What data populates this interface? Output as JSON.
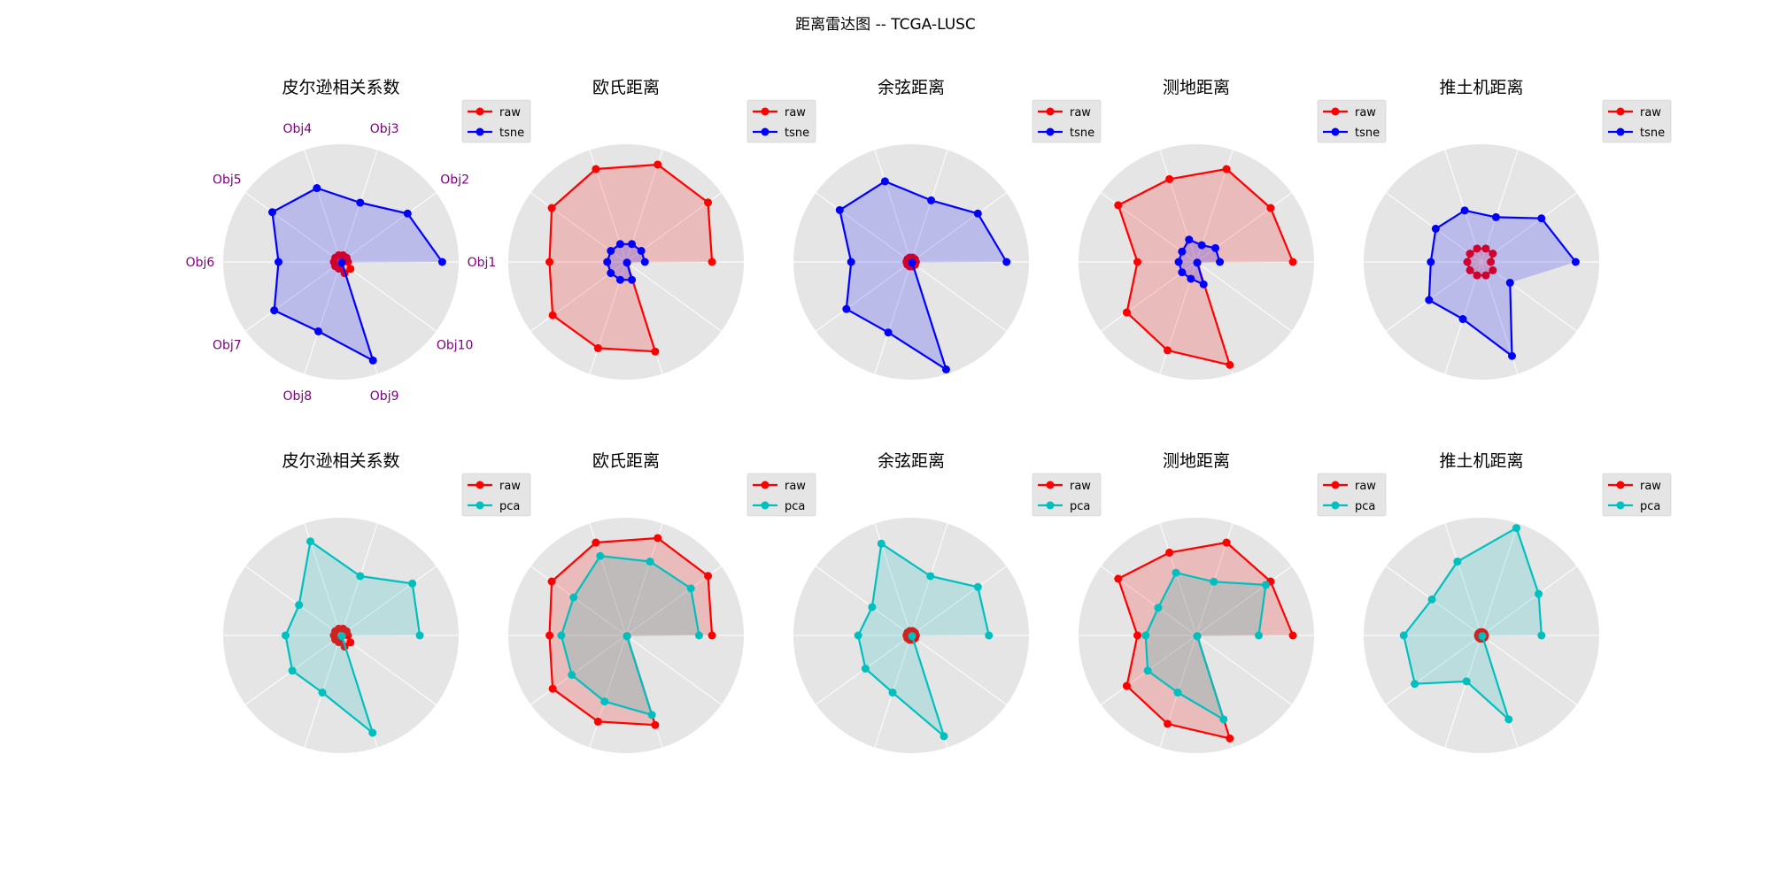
{
  "figure": {
    "title": "距离雷达图 -- TCGA-LUSC"
  },
  "colors": {
    "raw": "#ff0000",
    "tsne": "#0000ff",
    "pca": "#00bfbf",
    "axis_label": "#800080",
    "panel_background": "#e5e5e5",
    "grid": "#ffffff",
    "legend_background": "#e5e5e5"
  },
  "chart_data": [
    {
      "type": "radar",
      "row": 1,
      "title": "皮尔逊相关系数",
      "show_axis_labels": true,
      "axes": [
        "Obj1",
        "Obj2",
        "Obj3",
        "Obj4",
        "Obj5",
        "Obj6",
        "Obj7",
        "Obj8",
        "Obj9",
        "Obj10"
      ],
      "rmax": 1.0,
      "grid": true,
      "legend": "upper-right-outside",
      "series": [
        {
          "name": "raw",
          "values": [
            0.06,
            0.06,
            0.06,
            0.06,
            0.06,
            0.06,
            0.06,
            0.06,
            0.1,
            0.1
          ]
        },
        {
          "name": "tsne",
          "values": [
            0.86,
            0.7,
            0.53,
            0.66,
            0.72,
            0.53,
            0.7,
            0.62,
            0.88,
            0.01
          ]
        }
      ]
    },
    {
      "type": "radar",
      "row": 1,
      "title": "欧氏距离",
      "show_axis_labels": false,
      "axes": [
        "Obj1",
        "Obj2",
        "Obj3",
        "Obj4",
        "Obj5",
        "Obj6",
        "Obj7",
        "Obj8",
        "Obj9",
        "Obj10"
      ],
      "rmax": 1.0,
      "grid": true,
      "legend": "upper-right-outside",
      "series": [
        {
          "name": "raw",
          "values": [
            0.73,
            0.86,
            0.87,
            0.83,
            0.78,
            0.65,
            0.77,
            0.77,
            0.8,
            0.01
          ]
        },
        {
          "name": "tsne",
          "values": [
            0.16,
            0.16,
            0.16,
            0.16,
            0.16,
            0.16,
            0.16,
            0.16,
            0.16,
            0.01
          ]
        }
      ]
    },
    {
      "type": "radar",
      "row": 1,
      "title": "余弦距离",
      "show_axis_labels": false,
      "axes": [
        "Obj1",
        "Obj2",
        "Obj3",
        "Obj4",
        "Obj5",
        "Obj6",
        "Obj7",
        "Obj8",
        "Obj9",
        "Obj10"
      ],
      "rmax": 1.0,
      "grid": true,
      "legend": "upper-right-outside",
      "series": [
        {
          "name": "raw",
          "values": [
            0.04,
            0.04,
            0.04,
            0.04,
            0.04,
            0.04,
            0.04,
            0.04,
            0.04,
            0.04
          ]
        },
        {
          "name": "tsne",
          "values": [
            0.81,
            0.7,
            0.55,
            0.72,
            0.75,
            0.51,
            0.68,
            0.63,
            0.96,
            0.01
          ]
        }
      ]
    },
    {
      "type": "radar",
      "row": 1,
      "title": "测地距离",
      "show_axis_labels": false,
      "axes": [
        "Obj1",
        "Obj2",
        "Obj3",
        "Obj4",
        "Obj5",
        "Obj6",
        "Obj7",
        "Obj8",
        "Obj9",
        "Obj10"
      ],
      "rmax": 1.0,
      "grid": true,
      "legend": "upper-right-outside",
      "series": [
        {
          "name": "raw",
          "values": [
            0.82,
            0.78,
            0.83,
            0.74,
            0.82,
            0.5,
            0.73,
            0.79,
            0.92,
            0.01
          ]
        },
        {
          "name": "tsne",
          "values": [
            0.2,
            0.2,
            0.15,
            0.2,
            0.15,
            0.15,
            0.15,
            0.15,
            0.2,
            0.01
          ]
        }
      ]
    },
    {
      "type": "radar",
      "row": 1,
      "title": "推土机距离",
      "show_axis_labels": false,
      "axes": [
        "Obj1",
        "Obj2",
        "Obj3",
        "Obj4",
        "Obj5",
        "Obj6",
        "Obj7",
        "Obj8",
        "Obj9",
        "Obj10"
      ],
      "rmax": 1.0,
      "grid": true,
      "legend": "upper-right-outside",
      "series": [
        {
          "name": "raw",
          "values": [
            0.08,
            0.12,
            0.12,
            0.12,
            0.12,
            0.12,
            0.12,
            0.12,
            0.12,
            0.12
          ]
        },
        {
          "name": "tsne",
          "values": [
            0.8,
            0.63,
            0.4,
            0.46,
            0.48,
            0.43,
            0.55,
            0.51,
            0.84,
            0.3
          ]
        }
      ]
    },
    {
      "type": "radar",
      "row": 2,
      "title": "皮尔逊相关系数",
      "show_axis_labels": false,
      "axes": [
        "Obj1",
        "Obj2",
        "Obj3",
        "Obj4",
        "Obj5",
        "Obj6",
        "Obj7",
        "Obj8",
        "Obj9",
        "Obj10"
      ],
      "rmax": 1.0,
      "grid": true,
      "legend": "upper-right-outside",
      "series": [
        {
          "name": "raw",
          "values": [
            0.06,
            0.06,
            0.06,
            0.06,
            0.06,
            0.06,
            0.06,
            0.06,
            0.1,
            0.1
          ]
        },
        {
          "name": "pca",
          "values": [
            0.67,
            0.75,
            0.53,
            0.84,
            0.44,
            0.47,
            0.51,
            0.51,
            0.87,
            0.01
          ]
        }
      ]
    },
    {
      "type": "radar",
      "row": 2,
      "title": "欧氏距离",
      "show_axis_labels": false,
      "axes": [
        "Obj1",
        "Obj2",
        "Obj3",
        "Obj4",
        "Obj5",
        "Obj6",
        "Obj7",
        "Obj8",
        "Obj9",
        "Obj10"
      ],
      "rmax": 1.0,
      "grid": true,
      "legend": "upper-right-outside",
      "series": [
        {
          "name": "raw",
          "values": [
            0.73,
            0.86,
            0.87,
            0.83,
            0.78,
            0.65,
            0.77,
            0.77,
            0.8,
            0.01
          ]
        },
        {
          "name": "pca",
          "values": [
            0.62,
            0.68,
            0.66,
            0.71,
            0.55,
            0.55,
            0.57,
            0.59,
            0.71,
            0.01
          ]
        }
      ]
    },
    {
      "type": "radar",
      "row": 2,
      "title": "余弦距离",
      "show_axis_labels": false,
      "axes": [
        "Obj1",
        "Obj2",
        "Obj3",
        "Obj4",
        "Obj5",
        "Obj6",
        "Obj7",
        "Obj8",
        "Obj9",
        "Obj10"
      ],
      "rmax": 1.0,
      "grid": true,
      "legend": "upper-right-outside",
      "series": [
        {
          "name": "raw",
          "values": [
            0.04,
            0.04,
            0.04,
            0.04,
            0.04,
            0.04,
            0.04,
            0.04,
            0.04,
            0.04
          ]
        },
        {
          "name": "pca",
          "values": [
            0.66,
            0.7,
            0.53,
            0.82,
            0.41,
            0.45,
            0.48,
            0.51,
            0.9,
            0.01
          ]
        }
      ]
    },
    {
      "type": "radar",
      "row": 2,
      "title": "测地距离",
      "show_axis_labels": false,
      "axes": [
        "Obj1",
        "Obj2",
        "Obj3",
        "Obj4",
        "Obj5",
        "Obj6",
        "Obj7",
        "Obj8",
        "Obj9",
        "Obj10"
      ],
      "rmax": 1.0,
      "grid": true,
      "legend": "upper-right-outside",
      "series": [
        {
          "name": "raw",
          "values": [
            0.82,
            0.78,
            0.83,
            0.74,
            0.82,
            0.5,
            0.73,
            0.79,
            0.92,
            0.01
          ]
        },
        {
          "name": "pca",
          "values": [
            0.53,
            0.73,
            0.48,
            0.56,
            0.4,
            0.43,
            0.51,
            0.51,
            0.75,
            0.01
          ]
        }
      ]
    },
    {
      "type": "radar",
      "row": 2,
      "title": "推土机距离",
      "show_axis_labels": false,
      "axes": [
        "Obj1",
        "Obj2",
        "Obj3",
        "Obj4",
        "Obj5",
        "Obj6",
        "Obj7",
        "Obj8",
        "Obj9",
        "Obj10"
      ],
      "rmax": 1.0,
      "grid": true,
      "legend": "upper-right-outside",
      "series": [
        {
          "name": "raw",
          "values": [
            0.03,
            0.03,
            0.03,
            0.03,
            0.03,
            0.03,
            0.03,
            0.03,
            0.03,
            0.03
          ]
        },
        {
          "name": "pca",
          "values": [
            0.51,
            0.6,
            0.96,
            0.66,
            0.52,
            0.66,
            0.7,
            0.41,
            0.75,
            0.01
          ]
        }
      ]
    }
  ]
}
